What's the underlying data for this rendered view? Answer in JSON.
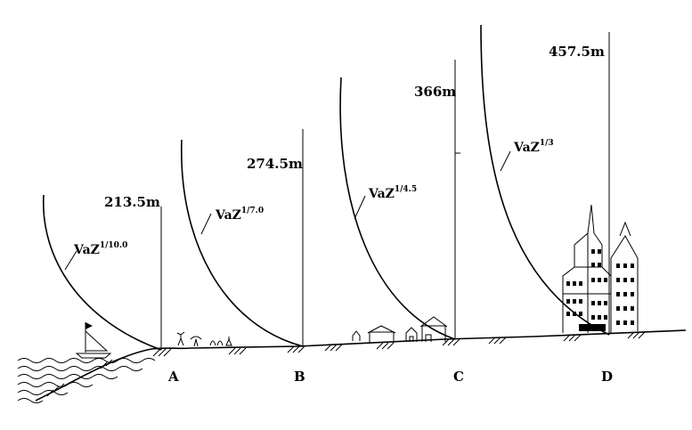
{
  "profiles": [
    {
      "site": "A",
      "height_label": "213.5m",
      "law_base": "VaZ",
      "law_exp": "1/10.0",
      "height_m": 213.5,
      "exponent": 0.1,
      "terrain": "sea"
    },
    {
      "site": "B",
      "height_label": "274.5m",
      "law_base": "VaZ",
      "law_exp": "1/7.0",
      "height_m": 274.5,
      "exponent": 0.1429,
      "terrain": "open country"
    },
    {
      "site": "C",
      "height_label": "366m",
      "law_base": "VaZ",
      "law_exp": "1/4.5",
      "height_m": 366,
      "exponent": 0.2222,
      "terrain": "suburbs"
    },
    {
      "site": "D",
      "height_label": "457.5m",
      "law_base": "VaZ",
      "law_exp": "1/3",
      "height_m": 457.5,
      "exponent": 0.3333,
      "terrain": "city centre"
    }
  ]
}
